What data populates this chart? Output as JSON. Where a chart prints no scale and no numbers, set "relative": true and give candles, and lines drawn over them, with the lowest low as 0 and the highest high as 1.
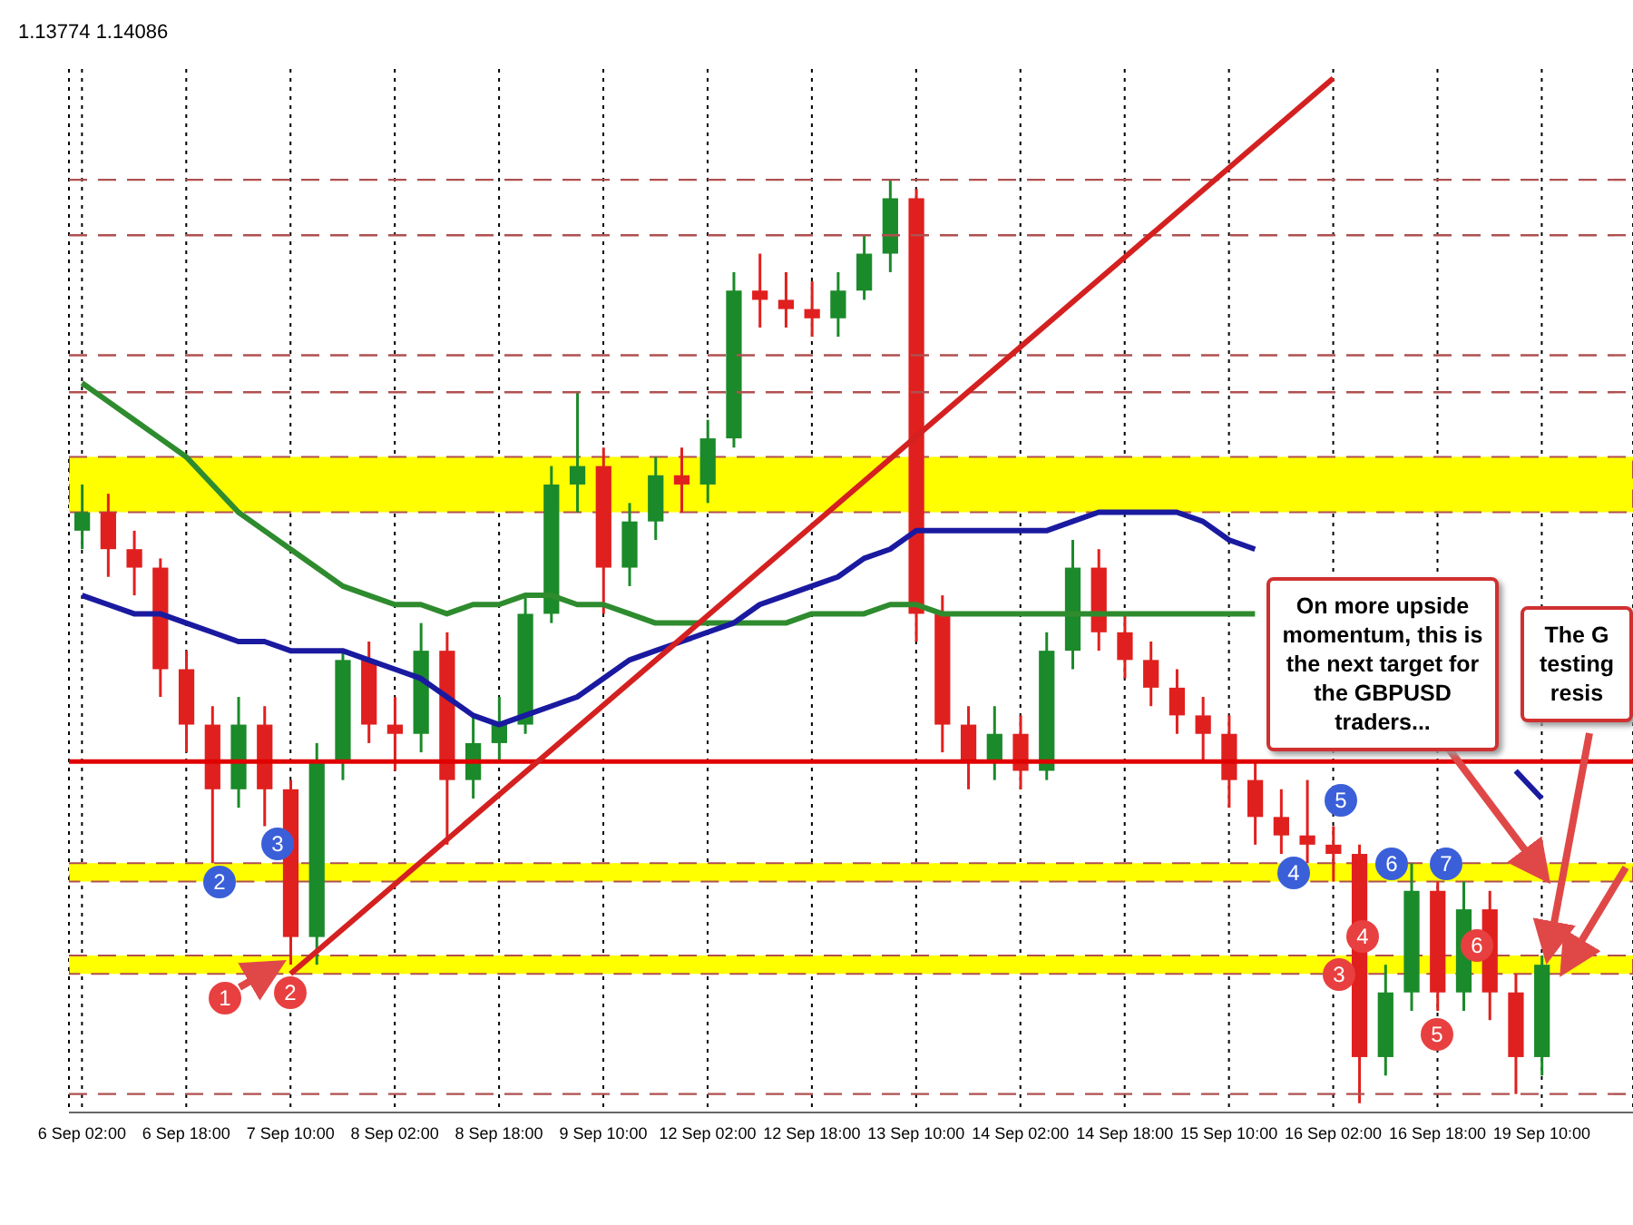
{
  "chart_data": {
    "type": "candlestick",
    "relative": true,
    "categories": [
      "6 Sep 02:00",
      null,
      null,
      null,
      "6 Sep 18:00",
      null,
      null,
      null,
      "7 Sep 10:00",
      null,
      null,
      null,
      "8 Sep 02:00",
      null,
      null,
      null,
      "8 Sep 18:00",
      null,
      null,
      null,
      "9 Sep 10:00",
      null,
      null,
      null,
      "12 Sep 02:00",
      null,
      null,
      null,
      "12 Sep 18:00",
      null,
      null,
      null,
      "13 Sep 10:00",
      null,
      null,
      null,
      "14 Sep 02:00",
      null,
      null,
      null,
      "14 Sep 18:00",
      null,
      null,
      null,
      "15 Sep 10:00",
      null,
      null,
      null,
      "16 Sep 02:00",
      null,
      null,
      null,
      "16 Sep 18:00",
      null,
      null,
      null,
      "19 Sep 10:00"
    ],
    "ohlc": [
      [
        0.62,
        0.67,
        0.6,
        0.64
      ],
      [
        0.64,
        0.66,
        0.57,
        0.6
      ],
      [
        0.6,
        0.62,
        0.55,
        0.58
      ],
      [
        0.58,
        0.59,
        0.44,
        0.47
      ],
      [
        0.47,
        0.49,
        0.38,
        0.41
      ],
      [
        0.41,
        0.43,
        0.26,
        0.34
      ],
      [
        0.34,
        0.44,
        0.32,
        0.41
      ],
      [
        0.41,
        0.43,
        0.3,
        0.34
      ],
      [
        0.34,
        0.35,
        0.15,
        0.18
      ],
      [
        0.18,
        0.39,
        0.15,
        0.37
      ],
      [
        0.37,
        0.49,
        0.35,
        0.48
      ],
      [
        0.48,
        0.5,
        0.39,
        0.41
      ],
      [
        0.41,
        0.44,
        0.36,
        0.4
      ],
      [
        0.4,
        0.52,
        0.38,
        0.49
      ],
      [
        0.49,
        0.51,
        0.28,
        0.35
      ],
      [
        0.35,
        0.42,
        0.33,
        0.39
      ],
      [
        0.39,
        0.44,
        0.37,
        0.41
      ],
      [
        0.41,
        0.55,
        0.4,
        0.53
      ],
      [
        0.53,
        0.69,
        0.52,
        0.67
      ],
      [
        0.67,
        0.77,
        0.64,
        0.69
      ],
      [
        0.69,
        0.71,
        0.53,
        0.58
      ],
      [
        0.58,
        0.65,
        0.56,
        0.63
      ],
      [
        0.63,
        0.7,
        0.61,
        0.68
      ],
      [
        0.68,
        0.71,
        0.64,
        0.67
      ],
      [
        0.67,
        0.74,
        0.65,
        0.72
      ],
      [
        0.72,
        0.9,
        0.71,
        0.88
      ],
      [
        0.88,
        0.92,
        0.84,
        0.87
      ],
      [
        0.87,
        0.9,
        0.84,
        0.86
      ],
      [
        0.86,
        0.89,
        0.83,
        0.85
      ],
      [
        0.85,
        0.9,
        0.83,
        0.88
      ],
      [
        0.88,
        0.94,
        0.87,
        0.92
      ],
      [
        0.92,
        1.0,
        0.9,
        0.98
      ],
      [
        0.98,
        0.99,
        0.5,
        0.53
      ],
      [
        0.53,
        0.55,
        0.38,
        0.41
      ],
      [
        0.41,
        0.43,
        0.34,
        0.37
      ],
      [
        0.37,
        0.43,
        0.35,
        0.4
      ],
      [
        0.4,
        0.42,
        0.34,
        0.36
      ],
      [
        0.36,
        0.51,
        0.35,
        0.49
      ],
      [
        0.49,
        0.61,
        0.47,
        0.58
      ],
      [
        0.58,
        0.6,
        0.49,
        0.51
      ],
      [
        0.51,
        0.53,
        0.46,
        0.48
      ],
      [
        0.48,
        0.5,
        0.43,
        0.45
      ],
      [
        0.45,
        0.47,
        0.4,
        0.42
      ],
      [
        0.42,
        0.44,
        0.37,
        0.4
      ],
      [
        0.4,
        0.42,
        0.32,
        0.35
      ],
      [
        0.35,
        0.37,
        0.28,
        0.31
      ],
      [
        0.31,
        0.34,
        0.27,
        0.29
      ],
      [
        0.29,
        0.35,
        0.26,
        0.28
      ],
      [
        0.28,
        0.3,
        0.24,
        0.27
      ],
      [
        0.27,
        0.28,
        0.0,
        0.05
      ],
      [
        0.05,
        0.15,
        0.03,
        0.12
      ],
      [
        0.12,
        0.26,
        0.1,
        0.23
      ],
      [
        0.23,
        0.24,
        0.1,
        0.12
      ],
      [
        0.12,
        0.24,
        0.1,
        0.21
      ],
      [
        0.21,
        0.23,
        0.09,
        0.12
      ],
      [
        0.12,
        0.14,
        0.01,
        0.05
      ],
      [
        0.05,
        0.16,
        0.03,
        0.15
      ]
    ],
    "colors": [
      "#1b8a2a",
      "#e0201e",
      "#e0201e",
      "#e0201e",
      "#e0201e",
      "#e0201e",
      "#1b8a2a",
      "#e0201e",
      "#e0201e",
      "#1b8a2a",
      "#1b8a2a",
      "#e0201e",
      "#e0201e",
      "#1b8a2a",
      "#e0201e",
      "#1b8a2a",
      "#1b8a2a",
      "#1b8a2a",
      "#1b8a2a",
      "#1b8a2a",
      "#e0201e",
      "#1b8a2a",
      "#1b8a2a",
      "#e0201e",
      "#1b8a2a",
      "#1b8a2a",
      "#e0201e",
      "#e0201e",
      "#e0201e",
      "#1b8a2a",
      "#1b8a2a",
      "#1b8a2a",
      "#e0201e",
      "#e0201e",
      "#e0201e",
      "#1b8a2a",
      "#e0201e",
      "#1b8a2a",
      "#1b8a2a",
      "#e0201e",
      "#e0201e",
      "#e0201e",
      "#e0201e",
      "#e0201e",
      "#e0201e",
      "#e0201e",
      "#e0201e",
      "#e0201e",
      "#e0201e",
      "#e0201e",
      "#1b8a2a",
      "#1b8a2a",
      "#e0201e",
      "#1b8a2a",
      "#e0201e",
      "#e0201e",
      "#1b8a2a"
    ],
    "series": [
      {
        "type": "line",
        "color": "#2e8b2e",
        "values": [
          0.78,
          0.76,
          0.74,
          0.72,
          0.7,
          0.67,
          0.64,
          0.62,
          0.6,
          0.58,
          0.56,
          0.55,
          0.54,
          0.54,
          0.53,
          0.54,
          0.54,
          0.55,
          0.55,
          0.54,
          0.54,
          0.53,
          0.52,
          0.52,
          0.52,
          0.52,
          0.52,
          0.52,
          0.53,
          0.53,
          0.53,
          0.54,
          0.54,
          0.53,
          0.53,
          0.53,
          0.53,
          0.53,
          0.53,
          0.53,
          0.53,
          0.53,
          0.53,
          0.53,
          0.53,
          0.53,
          null,
          null,
          null,
          null,
          null,
          null,
          null,
          null,
          null,
          null,
          null
        ]
      },
      {
        "type": "line",
        "color": "#1a1aa0",
        "values": [
          0.55,
          0.54,
          0.53,
          0.53,
          0.52,
          0.51,
          0.5,
          0.5,
          0.49,
          0.49,
          0.49,
          0.48,
          0.47,
          0.46,
          0.44,
          0.42,
          0.41,
          0.42,
          0.43,
          0.44,
          0.46,
          0.48,
          0.49,
          0.5,
          0.51,
          0.52,
          0.54,
          0.55,
          0.56,
          0.57,
          0.59,
          0.6,
          0.62,
          0.62,
          0.62,
          0.62,
          0.62,
          0.62,
          0.63,
          0.64,
          0.64,
          0.64,
          0.64,
          0.63,
          0.61,
          0.6,
          null,
          null,
          null,
          null,
          null,
          null,
          null,
          null,
          null,
          0.36,
          0.33
        ]
      },
      {
        "type": "line",
        "color": "#d42020",
        "x": [
          "7 Sep 10:00",
          "16 Sep 02:00"
        ],
        "values": [
          0.14,
          1.11
        ]
      }
    ],
    "ylim": [
      -0.01,
      1.12
    ],
    "grid": "x",
    "bands": [
      {
        "axis": "y",
        "from": 0.64,
        "to": 0.7,
        "color": "#ffff00"
      },
      {
        "axis": "y",
        "from": 0.24,
        "to": 0.26,
        "color": "#ffff00"
      },
      {
        "axis": "y",
        "from": 0.14,
        "to": 0.16,
        "color": "#ffff00"
      }
    ],
    "ref_lines": [
      {
        "axis": "y",
        "value": 0.37,
        "color": "#e00000",
        "line_style": "solid"
      },
      {
        "axis": "y",
        "value": 1.0,
        "color": "#b05050",
        "line_style": "dashed"
      },
      {
        "axis": "y",
        "value": 0.94,
        "color": "#b05050",
        "line_style": "dashed"
      },
      {
        "axis": "y",
        "value": 0.81,
        "color": "#b05050",
        "line_style": "dashed"
      },
      {
        "axis": "y",
        "value": 0.77,
        "color": "#b05050",
        "line_style": "dashed"
      },
      {
        "axis": "y",
        "value": 0.01,
        "color": "#b05050",
        "line_style": "dashed"
      }
    ],
    "annotations": [
      "1.13774 1.14086",
      {
        "text": "On more upside momentum, this is the next target for the GBPUSD traders...",
        "x": "19 Sep 10:00",
        "y": 0.25
      },
      {
        "text": "The G\ntesting\nresis",
        "x": "19 Sep 10:00",
        "y": 0.15
      },
      "2",
      "3",
      "4",
      "5",
      "6",
      "7",
      "1",
      "2",
      "3",
      "4",
      "5",
      "6"
    ]
  }
}
